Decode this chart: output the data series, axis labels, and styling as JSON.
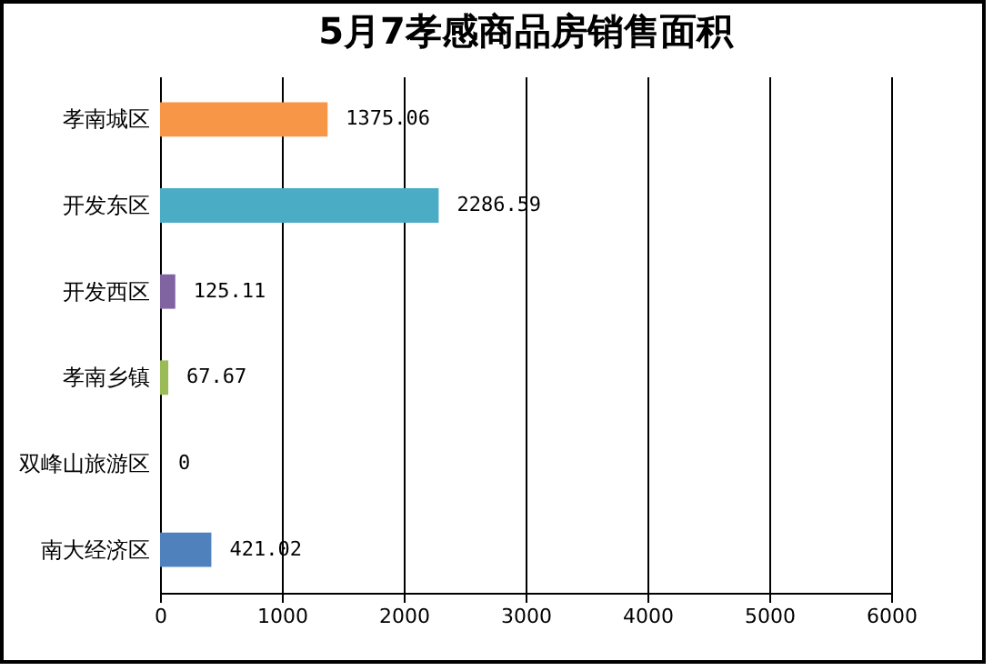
{
  "chart_data": {
    "type": "bar",
    "orientation": "horizontal",
    "title": "5月7孝感商品房销售面积",
    "categories": [
      "孝南城区",
      "开发东区",
      "开发西区",
      "孝南乡镇",
      "双峰山旅游区",
      "南大经济区"
    ],
    "values": [
      1375.06,
      2286.59,
      125.11,
      67.67,
      0,
      421.02
    ],
    "colors": [
      "#f79646",
      "#4bacc6",
      "#8064a2",
      "#9bbb59",
      "#c0504d",
      "#4f81bd"
    ],
    "xlim": [
      0,
      6000
    ],
    "xticks": [
      0,
      1000,
      2000,
      3000,
      4000,
      5000,
      6000
    ],
    "grid": "x",
    "data_labels": true
  }
}
